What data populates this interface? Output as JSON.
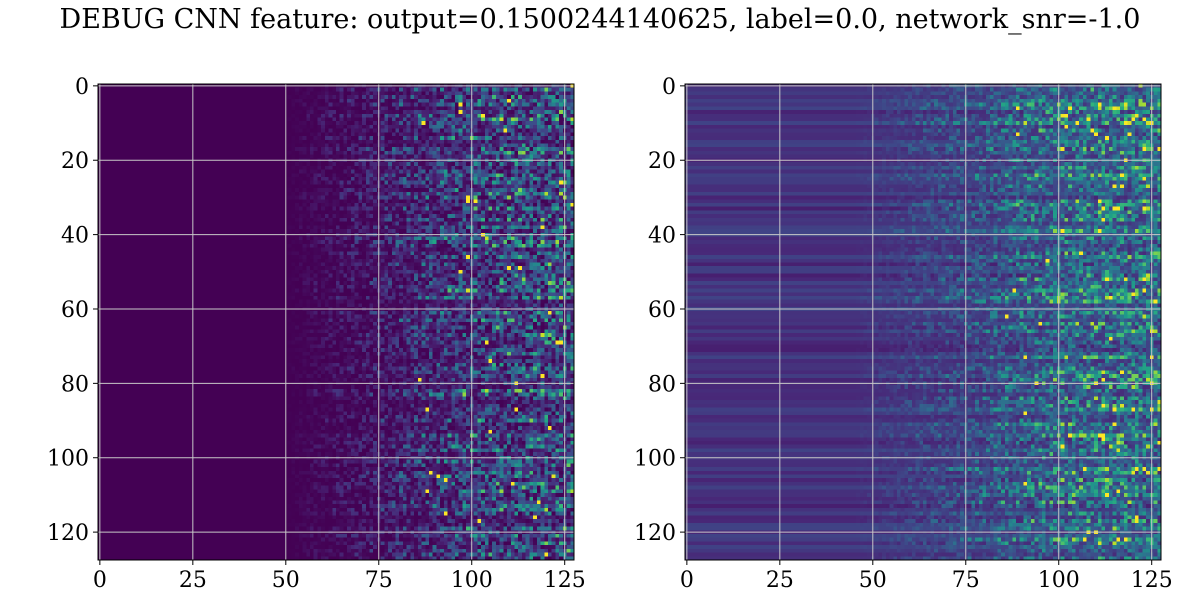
{
  "title": "DEBUG CNN feature: output=0.1500244140625, label=0.0, network_snr=-1.0",
  "colormap": {
    "name": "viridis",
    "stops": [
      "#440154",
      "#482878",
      "#3e4989",
      "#31688e",
      "#26828e",
      "#1f9e89",
      "#35b779",
      "#6ece58",
      "#b5de2b",
      "#fde725"
    ]
  },
  "chart_data": [
    {
      "type": "heatmap",
      "title": "",
      "xlabel": "",
      "ylabel": "",
      "rows": 128,
      "cols": 128,
      "xlim": [
        0,
        127
      ],
      "ylim": [
        127,
        0
      ],
      "xticks": [
        0,
        25,
        50,
        75,
        100,
        125
      ],
      "yticks": [
        0,
        20,
        40,
        60,
        80,
        100,
        120
      ],
      "grid": true,
      "pattern": {
        "background_value": 0.0,
        "onset_col": 50,
        "activity_start_col": 75,
        "peak_value": 1.0,
        "row_noise": 0.0,
        "description_of_values": "values ~0 for columns 0-50, sparse low activity 50-75, noisy higher activity 75-127 with bright peaks near columns 118-126"
      }
    },
    {
      "type": "heatmap",
      "title": "",
      "xlabel": "",
      "ylabel": "",
      "rows": 128,
      "cols": 128,
      "xlim": [
        0,
        127
      ],
      "ylim": [
        127,
        0
      ],
      "xticks": [
        0,
        25,
        50,
        75,
        100,
        125
      ],
      "yticks": [
        0,
        20,
        40,
        60,
        80,
        100,
        120
      ],
      "grid": true,
      "pattern": {
        "background_value": 0.12,
        "onset_col": 45,
        "activity_start_col": 75,
        "peak_value": 1.0,
        "row_noise": 0.12,
        "description_of_values": "horizontal row striping across all columns, noisy activity 75-127 with bright pixels near columns 85 and 110"
      }
    }
  ]
}
